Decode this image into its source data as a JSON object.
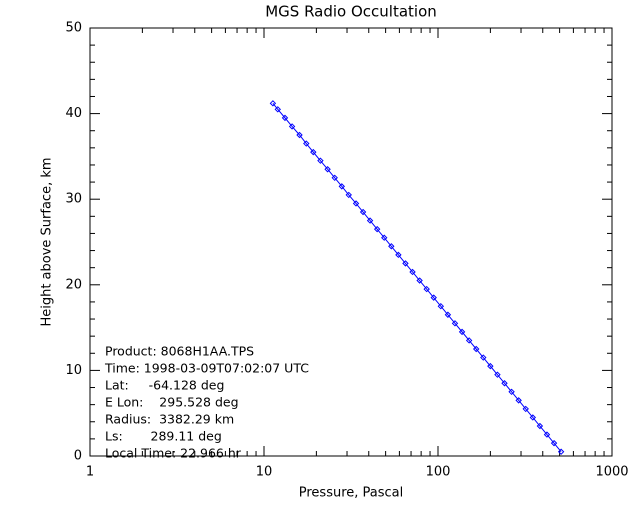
{
  "chart_data": {
    "type": "line",
    "title": "MGS Radio Occultation",
    "x_label": "Pressure, Pascal",
    "y_label": "Height above Surface, km",
    "log_x": true,
    "xlim": [
      1,
      1000
    ],
    "ylim": [
      0,
      50
    ],
    "xticks": [
      1,
      10,
      100,
      1000
    ],
    "yticks": [
      0,
      10,
      20,
      30,
      40,
      50
    ],
    "xminorticks": [
      2,
      3,
      4,
      5,
      6,
      7,
      8,
      9,
      20,
      30,
      40,
      50,
      60,
      70,
      80,
      90,
      200,
      300,
      400,
      500,
      600,
      700,
      800,
      900
    ],
    "yminorticks": [
      2,
      4,
      6,
      8,
      12,
      14,
      16,
      18,
      22,
      24,
      26,
      28,
      32,
      34,
      36,
      38,
      42,
      44,
      46,
      48
    ],
    "annotations": [
      "Product: 8068H1AA.TPS",
      "Time: 1998-03-09T07:02:07 UTC",
      "Lat:     -64.128 deg",
      "E Lon:    295.528 deg",
      "Radius:  3382.29 km",
      "Ls:       289.11 deg",
      "Local Time: 22.966 hr"
    ],
    "series": [
      {
        "color": "#0000ff",
        "x": [
          510,
          464.4,
          422.9,
          385.1,
          350.7,
          319.3,
          290.8,
          264.8,
          241.1,
          219.6,
          199.9,
          182.1,
          165.8,
          151.0,
          137.5,
          125.2,
          114.0,
          103.8,
          94.5,
          86.1,
          78.4,
          71.4,
          65.0,
          59.2,
          53.9,
          49.1,
          44.7,
          40.7,
          37.1,
          33.8,
          30.7,
          28.0,
          25.5,
          23.2,
          21.1,
          19.2,
          17.5,
          16.0,
          14.5,
          13.2,
          12.0,
          11.25
        ],
        "values": [
          0.5,
          1.5,
          2.5,
          3.5,
          4.5,
          5.5,
          6.5,
          7.5,
          8.5,
          9.5,
          10.5,
          11.5,
          12.5,
          13.5,
          14.5,
          15.5,
          16.5,
          17.5,
          18.5,
          19.5,
          20.5,
          21.5,
          22.5,
          23.5,
          24.5,
          25.5,
          26.5,
          27.5,
          28.5,
          29.5,
          30.5,
          31.5,
          32.5,
          33.5,
          34.5,
          35.5,
          36.5,
          37.5,
          38.5,
          39.5,
          40.5,
          41.2
        ]
      }
    ]
  }
}
